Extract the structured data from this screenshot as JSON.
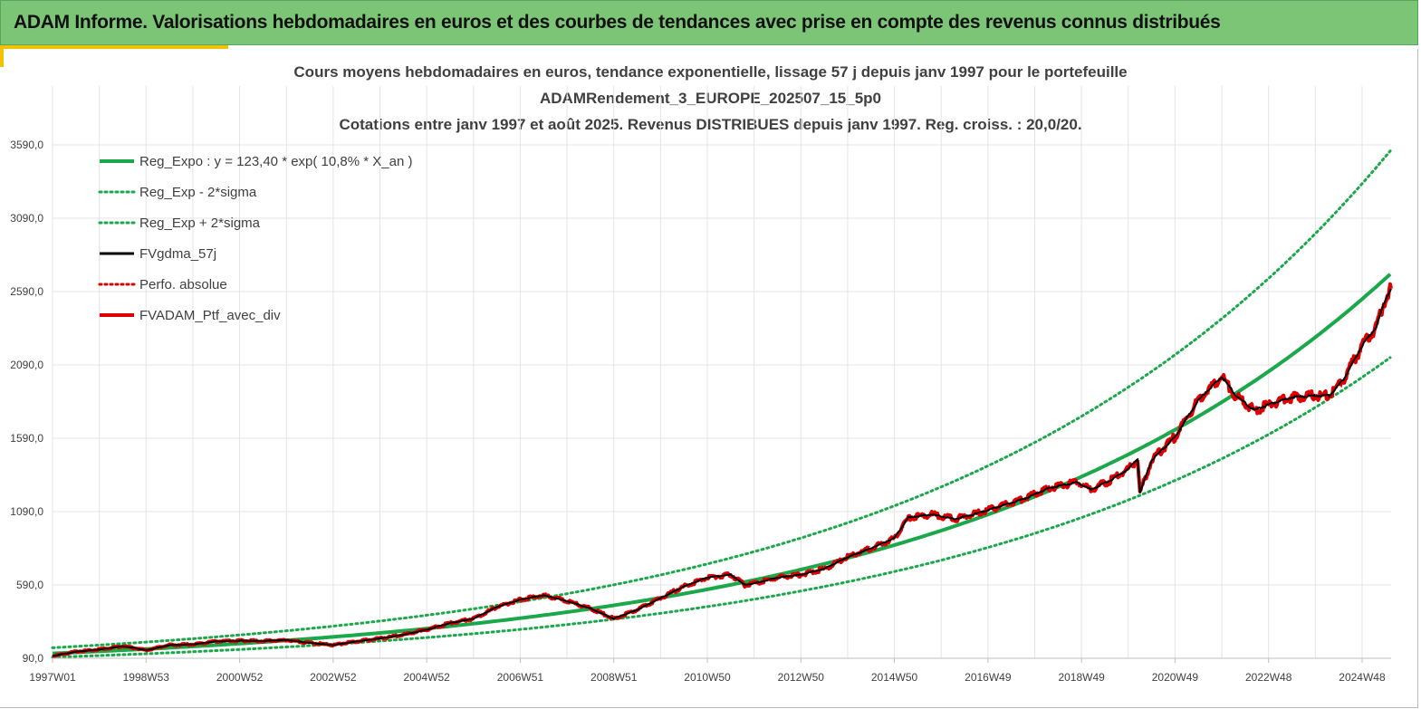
{
  "header": {
    "title": "ADAM Informe. Valorisations hebdomadaires en euros et des courbes de tendances avec prise en compte des revenus connus distribués"
  },
  "colors": {
    "header_bg": "#7cc576",
    "accent": "#f2c200",
    "reg_green": "#1aa84a",
    "black": "#000000",
    "red": "#e00000",
    "grid": "#e4e4e4"
  },
  "chart_data": {
    "type": "line",
    "title_lines": [
      "Cours moyens hebdomadaires  en euros, tendance exponentielle, lissage 57 j depuis janv 1997 pour le portefeuille",
      "ADAMRendement_3_EUROPE_202507_15_5p0",
      "Cotations entre janv 1997 et août 2025. Revenus DISTRIBUES depuis janv 1997. Reg. croiss. : 20,0/20."
    ],
    "y_ticks": [
      "3590,0",
      "3090,0",
      "2590,0",
      "2090,0",
      "1590,0",
      "1090,0",
      "590,0",
      "90,0"
    ],
    "y_tick_values": [
      3590,
      3090,
      2590,
      2090,
      1590,
      1090,
      590,
      90
    ],
    "ylim": [
      90,
      3890
    ],
    "x_ticks": [
      "1997W01",
      "1998W53",
      "2000W52",
      "2002W52",
      "2004W52",
      "2006W51",
      "2008W51",
      "2010W50",
      "2012W50",
      "2014W50",
      "2016W49",
      "2018W49",
      "2020W49",
      "2022W48",
      "2024W48"
    ],
    "x_tick_years": [
      1997.0,
      1999.0,
      2001.0,
      2003.0,
      2005.0,
      2007.0,
      2009.0,
      2011.0,
      2013.0,
      2015.0,
      2017.0,
      2019.0,
      2021.0,
      2023.0,
      2025.0
    ],
    "xlim": [
      1997.0,
      2025.62
    ],
    "grid": true,
    "legend_position": "top-left",
    "regression": {
      "a": 123.4,
      "rate": 0.108,
      "sigma_factor_low": 0.79,
      "sigma_factor_high": 1.31
    },
    "series": [
      {
        "name": "Reg_Expo : y = 123,40 * exp( 10,8% *  X_an )",
        "style": "solid",
        "color": "#1aa84a",
        "width": 4
      },
      {
        "name": "Reg_Exp - 2*sigma",
        "style": "dotted",
        "color": "#1aa84a",
        "width": 3
      },
      {
        "name": "Reg_Exp + 2*sigma",
        "style": "dotted",
        "color": "#1aa84a",
        "width": 3
      },
      {
        "name": "FVgdma_57j",
        "style": "solid",
        "color": "#000000",
        "width": 3
      },
      {
        "name": "Perfo. absolue",
        "style": "dotted",
        "color": "#e00000",
        "width": 3
      },
      {
        "name": "FVADAM_Ptf_avec_div",
        "style": "solid",
        "color": "#e00000",
        "width": 4
      }
    ],
    "portfolio_points": [
      [
        1997.0,
        105
      ],
      [
        1997.5,
        135
      ],
      [
        1998.0,
        150
      ],
      [
        1998.5,
        172
      ],
      [
        1998.8,
        158
      ],
      [
        1999.0,
        145
      ],
      [
        1999.5,
        180
      ],
      [
        2000.0,
        185
      ],
      [
        2000.5,
        205
      ],
      [
        2001.0,
        210
      ],
      [
        2001.5,
        208
      ],
      [
        2002.0,
        215
      ],
      [
        2002.5,
        195
      ],
      [
        2003.0,
        180
      ],
      [
        2003.5,
        205
      ],
      [
        2004.0,
        225
      ],
      [
        2004.5,
        250
      ],
      [
        2005.0,
        285
      ],
      [
        2005.5,
        330
      ],
      [
        2006.0,
        360
      ],
      [
        2006.5,
        440
      ],
      [
        2007.0,
        490
      ],
      [
        2007.5,
        520
      ],
      [
        2008.0,
        480
      ],
      [
        2008.5,
        430
      ],
      [
        2009.0,
        360
      ],
      [
        2009.5,
        420
      ],
      [
        2010.0,
        500
      ],
      [
        2010.5,
        580
      ],
      [
        2011.0,
        640
      ],
      [
        2011.5,
        660
      ],
      [
        2011.8,
        590
      ],
      [
        2012.0,
        600
      ],
      [
        2012.5,
        640
      ],
      [
        2013.0,
        660
      ],
      [
        2013.5,
        700
      ],
      [
        2014.0,
        780
      ],
      [
        2014.5,
        840
      ],
      [
        2015.0,
        910
      ],
      [
        2015.3,
        1050
      ],
      [
        2015.8,
        1070
      ],
      [
        2016.3,
        1040
      ],
      [
        2016.8,
        1080
      ],
      [
        2017.3,
        1130
      ],
      [
        2017.8,
        1180
      ],
      [
        2018.3,
        1250
      ],
      [
        2018.9,
        1290
      ],
      [
        2019.2,
        1240
      ],
      [
        2019.6,
        1300
      ],
      [
        2020.0,
        1380
      ],
      [
        2020.2,
        1450
      ],
      [
        2020.25,
        1220
      ],
      [
        2020.5,
        1440
      ],
      [
        2021.0,
        1600
      ],
      [
        2021.5,
        1850
      ],
      [
        2022.0,
        2010
      ],
      [
        2022.3,
        1880
      ],
      [
        2022.7,
        1780
      ],
      [
        2023.0,
        1820
      ],
      [
        2023.5,
        1870
      ],
      [
        2024.0,
        1880
      ],
      [
        2024.3,
        1880
      ],
      [
        2024.6,
        1990
      ],
      [
        2025.0,
        2220
      ],
      [
        2025.3,
        2350
      ],
      [
        2025.5,
        2540
      ],
      [
        2025.62,
        2610
      ]
    ]
  }
}
